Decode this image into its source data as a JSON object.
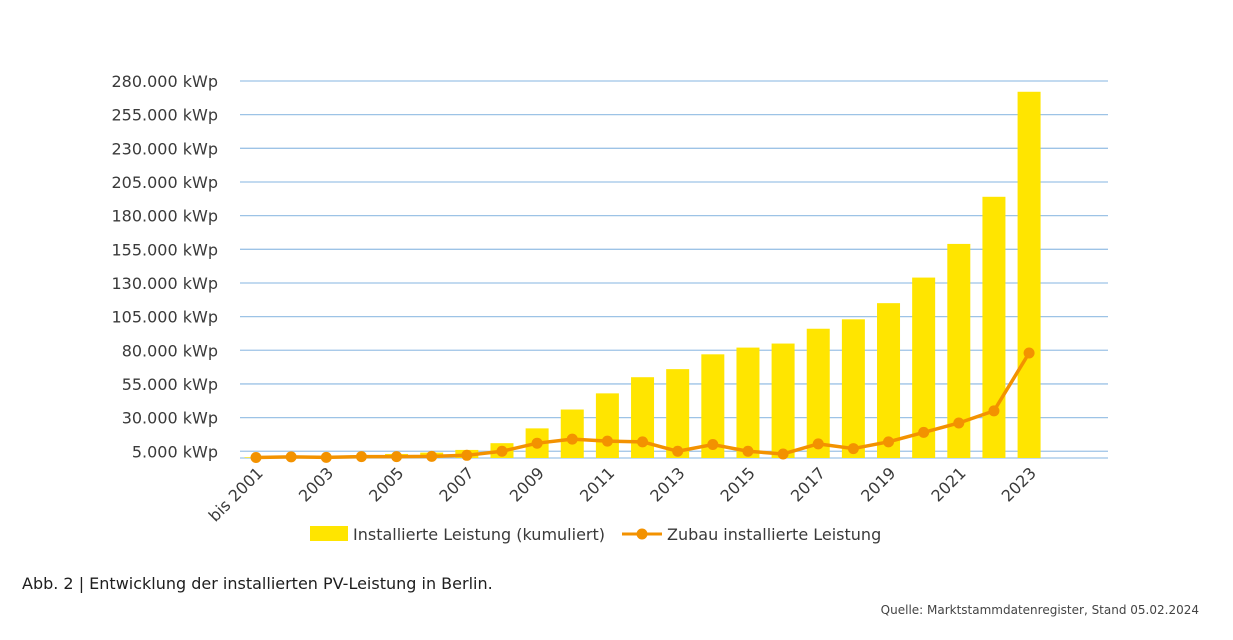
{
  "chart_data": {
    "type": "bar+line",
    "categories": [
      "bis 2001",
      "2002",
      "2003",
      "2004",
      "2005",
      "2006",
      "2007",
      "2008",
      "2009",
      "2010",
      "2011",
      "2012",
      "2013",
      "2014",
      "2015",
      "2016",
      "2017",
      "2018",
      "2019",
      "2020",
      "2021",
      "2022",
      "2023"
    ],
    "x_tick_labels": [
      "bis 2001",
      "2003",
      "2005",
      "2007",
      "2009",
      "2011",
      "2013",
      "2015",
      "2017",
      "2019",
      "2021",
      "2023"
    ],
    "series": [
      {
        "name": "Installierte Leistung (kumuliert)",
        "type": "bar",
        "color": "#FFE500",
        "values": [
          500,
          1000,
          1500,
          2000,
          3000,
          4000,
          6000,
          11000,
          22000,
          36000,
          48000,
          60000,
          66000,
          77000,
          82000,
          85000,
          96000,
          103000,
          115000,
          134000,
          159000,
          194000,
          272000
        ]
      },
      {
        "name": "Zubau installierte Leistung",
        "type": "line",
        "color": "#F39200",
        "values": [
          400,
          800,
          500,
          1000,
          1000,
          1200,
          2000,
          5000,
          11000,
          14000,
          12500,
          12000,
          5000,
          10000,
          5000,
          3000,
          10500,
          7000,
          12000,
          19000,
          26000,
          35000,
          78000
        ]
      }
    ],
    "y_ticks": [
      5000,
      30000,
      55000,
      80000,
      105000,
      130000,
      155000,
      180000,
      205000,
      230000,
      255000,
      280000
    ],
    "y_tick_labels": [
      "5.000 kWp",
      "30.000 kWp",
      "55.000 kWp",
      "80.000 kWp",
      "105.000 kWp",
      "130.000 kWp",
      "155.000 kWp",
      "180.000 kWp",
      "205.000 kWp",
      "230.000 kWp",
      "255.000 kWp",
      "280.000 kWp"
    ],
    "ylim": [
      0,
      280000
    ],
    "grid": true,
    "legend_position": "bottom",
    "title": "",
    "xlabel": "",
    "ylabel": ""
  },
  "caption": "Abb. 2 | Entwicklung der installierten PV-Leistung in Berlin.",
  "source": "Quelle: Marktstammdatenregister, Stand 05.02.2024",
  "colors": {
    "grid": "#9DC3E6",
    "bar": "#FFE500",
    "line": "#F39200"
  }
}
